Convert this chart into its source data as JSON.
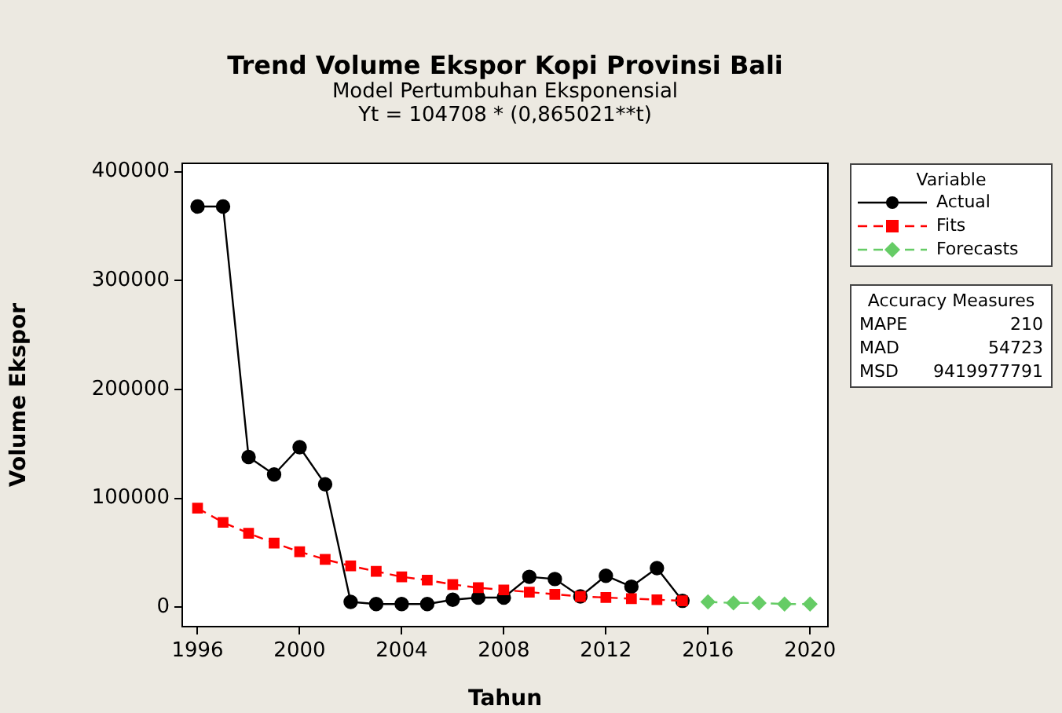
{
  "chart_data": {
    "type": "line",
    "title": "Trend Volume Ekspor Kopi Provinsi Bali",
    "subtitle": "Model Pertumbuhan Eksponensial",
    "xlabel": "Tahun",
    "ylabel": "Volume Ekspor",
    "legend_title": "Variable",
    "annotations": [
      "Yt = 104708 * (0,865021**t)",
      "Accuracy Measures",
      "MAPE 210",
      "MAD 54723",
      "MSD 9419977791"
    ],
    "xlim": [
      1995.4,
      2020.7
    ],
    "xticks": [
      1996,
      2000,
      2004,
      2008,
      2012,
      2016,
      2020
    ],
    "ylim": [
      -17700,
      407600
    ],
    "yticks": [
      0,
      100000,
      200000,
      300000,
      400000
    ],
    "grid": false,
    "legend": "right",
    "series": [
      {
        "name": "Actual",
        "color": "#000000",
        "marker": "circle",
        "line_style": "solid",
        "x": [
          1996,
          1997,
          1998,
          1999,
          2000,
          2001,
          2002,
          2003,
          2004,
          2005,
          2006,
          2007,
          2008,
          2009,
          2010,
          2011,
          2012,
          2013,
          2014,
          2015
        ],
        "values": [
          368000,
          368000,
          138000,
          122000,
          147000,
          113000,
          5000,
          3000,
          3000,
          3000,
          7000,
          9000,
          9000,
          28000,
          26000,
          10000,
          29000,
          19000,
          36000,
          6000
        ]
      },
      {
        "name": "Fits",
        "color": "#ff0000",
        "marker": "square",
        "line_style": "dashed",
        "x": [
          1996,
          1997,
          1998,
          1999,
          2000,
          2001,
          2002,
          2003,
          2004,
          2005,
          2006,
          2007,
          2008,
          2009,
          2010,
          2011,
          2012,
          2013,
          2014,
          2015
        ],
        "values": [
          91000,
          78000,
          68000,
          59000,
          51000,
          44000,
          38000,
          33000,
          28000,
          25000,
          21000,
          18000,
          16000,
          14000,
          12000,
          10000,
          9000,
          8000,
          7000,
          6000
        ]
      },
      {
        "name": "Forecasts",
        "color": "#66cc66",
        "marker": "diamond",
        "line_style": "dashed",
        "x": [
          2016,
          2017,
          2018,
          2019,
          2020
        ],
        "values": [
          5000,
          4000,
          4000,
          3000,
          3000
        ]
      }
    ]
  }
}
